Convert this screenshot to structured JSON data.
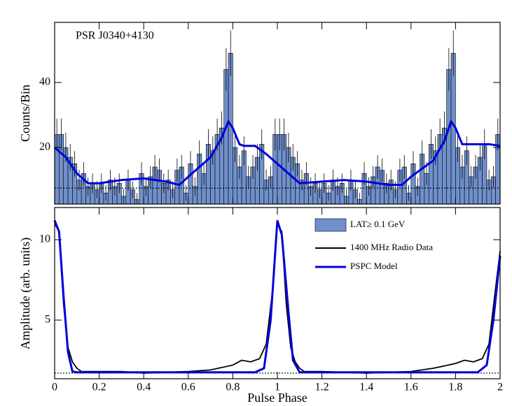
{
  "chart_data": [
    {
      "type": "histogram",
      "annotation": "PSR J0340+4130",
      "ylabel": "Counts/Bin",
      "name": "LAT≥ 0.1 GeV",
      "color": "#7090cc",
      "bins": [
        0,
        0.02,
        0.04,
        0.06,
        0.08,
        0.1,
        0.12,
        0.14,
        0.16,
        0.18,
        0.2,
        0.22,
        0.24,
        0.26,
        0.28,
        0.3,
        0.32,
        0.34,
        0.36,
        0.38,
        0.4,
        0.42,
        0.44,
        0.46,
        0.48,
        0.5,
        0.52,
        0.54,
        0.56,
        0.58,
        0.6,
        0.62,
        0.64,
        0.66,
        0.68,
        0.7,
        0.72,
        0.74,
        0.76,
        0.78,
        0.8,
        0.82,
        0.84,
        0.86,
        0.88,
        0.9,
        0.92,
        0.94,
        0.96,
        0.98,
        1,
        1.02,
        1.04,
        1.06,
        1.08,
        1.1,
        1.12,
        1.14,
        1.16,
        1.18,
        1.2,
        1.22,
        1.24,
        1.26,
        1.28,
        1.3,
        1.32,
        1.34,
        1.36,
        1.38,
        1.4,
        1.42,
        1.44,
        1.46,
        1.48,
        1.5,
        1.52,
        1.54,
        1.56,
        1.58,
        1.6,
        1.62,
        1.64,
        1.66,
        1.68,
        1.7,
        1.72,
        1.74,
        1.76,
        1.78,
        1.8,
        1.82,
        1.84,
        1.86,
        1.88,
        1.9,
        1.92,
        1.94,
        1.96,
        1.98,
        2
      ],
      "values": [
        24,
        24,
        20,
        17,
        15,
        10,
        12,
        8,
        9,
        7,
        9,
        6,
        10,
        8,
        9,
        5,
        10,
        7,
        4,
        12,
        8,
        11,
        14,
        13,
        9,
        10,
        7,
        13,
        14,
        6,
        15,
        8,
        18,
        12,
        21,
        19,
        24,
        26,
        44,
        49,
        20,
        14,
        19,
        11,
        14,
        17,
        21,
        10,
        11,
        24,
        24,
        24,
        20,
        17,
        15,
        10,
        12,
        8,
        9,
        7,
        9,
        6,
        10,
        8,
        9,
        5,
        10,
        7,
        4,
        12,
        8,
        11,
        14,
        13,
        9,
        10,
        7,
        13,
        14,
        6,
        15,
        8,
        18,
        12,
        21,
        19,
        24,
        26,
        44,
        49,
        20,
        14,
        19,
        11,
        14,
        17,
        21,
        10,
        11,
        24
      ],
      "errors": [
        4.9,
        4.9,
        4.5,
        4.1,
        3.9,
        3.2,
        3.5,
        2.8,
        3,
        2.6,
        3,
        2.4,
        3.2,
        2.8,
        3,
        2.2,
        3.2,
        2.6,
        2,
        3.5,
        2.8,
        3.3,
        3.7,
        3.6,
        3,
        3.2,
        2.6,
        3.6,
        3.7,
        2.4,
        3.9,
        2.8,
        4.2,
        3.5,
        4.6,
        4.4,
        4.9,
        5.1,
        6.6,
        7,
        4.5,
        3.7,
        4.4,
        3.3,
        3.7,
        4.1,
        4.6,
        3.2,
        3.3,
        4.9,
        4.9,
        4.9,
        4.5,
        4.1,
        3.9,
        3.2,
        3.5,
        2.8,
        3,
        2.6,
        3,
        2.4,
        3.2,
        2.8,
        3,
        2.2,
        3.2,
        2.6,
        2,
        3.5,
        2.8,
        3.3,
        3.7,
        3.6,
        3,
        3.2,
        2.6,
        3.6,
        3.7,
        2.4,
        3.9,
        2.8,
        4.2,
        3.5,
        4.6,
        4.4,
        4.9,
        5.1,
        6.6,
        7,
        4.5,
        3.7,
        4.4,
        3.3,
        3.7,
        4.1,
        4.6,
        3.2,
        3.3,
        4.9
      ],
      "series": [
        {
          "color": "#0000dd",
          "x": [
            0,
            0.05,
            0.1,
            0.15,
            0.2,
            0.3,
            0.4,
            0.5,
            0.56,
            0.6,
            0.7,
            0.75,
            0.78,
            0.8,
            0.83,
            0.85,
            0.9,
            0.95,
            1,
            1.05,
            1.1,
            1.2,
            1.3,
            1.4,
            1.5,
            1.56,
            1.6,
            1.7,
            1.75,
            1.78,
            1.8,
            1.83,
            1.9,
            1.95,
            2
          ],
          "values": [
            20,
            17,
            12,
            9,
            9,
            10,
            10.5,
            9.5,
            8.5,
            11,
            17,
            23,
            28,
            26,
            21,
            20.5,
            20.5,
            18,
            15,
            12,
            9,
            9.5,
            10,
            9.5,
            8.5,
            8.5,
            11,
            16,
            22,
            28,
            26,
            21,
            21,
            21,
            20.5
          ]
        }
      ],
      "baseline": 7.5,
      "xlim": [
        0,
        2
      ],
      "xticks": [
        0,
        0.2,
        0.4,
        0.6,
        0.8,
        1,
        1.2,
        1.4,
        1.6,
        1.8,
        2
      ],
      "ylim": [
        2.6,
        58.5
      ],
      "yticks": [
        20,
        40
      ]
    },
    {
      "type": "line",
      "ylabel": "Amplitude (arb. units)",
      "xlabel": "Pulse Phase",
      "series": [
        {
          "name": "1400 MHz Radio Data",
          "color": "#000000",
          "x": [
            0,
            0.02,
            0.04,
            0.06,
            0.08,
            0.1,
            0.12,
            0.2,
            0.3,
            0.4,
            0.5,
            0.6,
            0.7,
            0.8,
            0.84,
            0.88,
            0.92,
            0.95,
            0.98,
            1,
            1.02,
            1.04,
            1.06,
            1.08,
            1.1,
            1.12,
            1.2,
            1.4,
            1.6,
            1.7,
            1.8,
            1.84,
            1.88,
            1.92,
            1.95,
            1.98,
            2
          ],
          "values": [
            11,
            10.5,
            6,
            3.3,
            2.4,
            2,
            1.8,
            1.8,
            1.8,
            1.7,
            1.75,
            1.8,
            1.9,
            2.2,
            2.5,
            2.4,
            2.6,
            3.5,
            7,
            11,
            10.5,
            6,
            3.3,
            2.4,
            2,
            1.8,
            1.8,
            1.7,
            1.8,
            2,
            2.3,
            2.5,
            2.4,
            2.6,
            3.5,
            7,
            9.3
          ]
        },
        {
          "name": "PSPC Model",
          "color": "#0000dd",
          "x": [
            0,
            0.02,
            0.04,
            0.06,
            0.08,
            0.1,
            0.9,
            0.94,
            0.97,
            1,
            1.02,
            1.05,
            1.07,
            1.1,
            1.9,
            1.94,
            1.97,
            2
          ],
          "values": [
            11.2,
            10.5,
            6.5,
            3,
            1.8,
            1.75,
            1.75,
            2,
            5,
            11.2,
            10.3,
            5.5,
            2.5,
            1.75,
            1.75,
            2.2,
            5,
            9
          ]
        }
      ],
      "baseline": 1.7,
      "xlim": [
        0,
        2
      ],
      "xticks": [
        0,
        0.2,
        0.4,
        0.6,
        0.8,
        1,
        1.2,
        1.4,
        1.6,
        1.8,
        2
      ],
      "ylim": [
        1.35,
        12
      ],
      "yticks": [
        5,
        10
      ]
    }
  ]
}
